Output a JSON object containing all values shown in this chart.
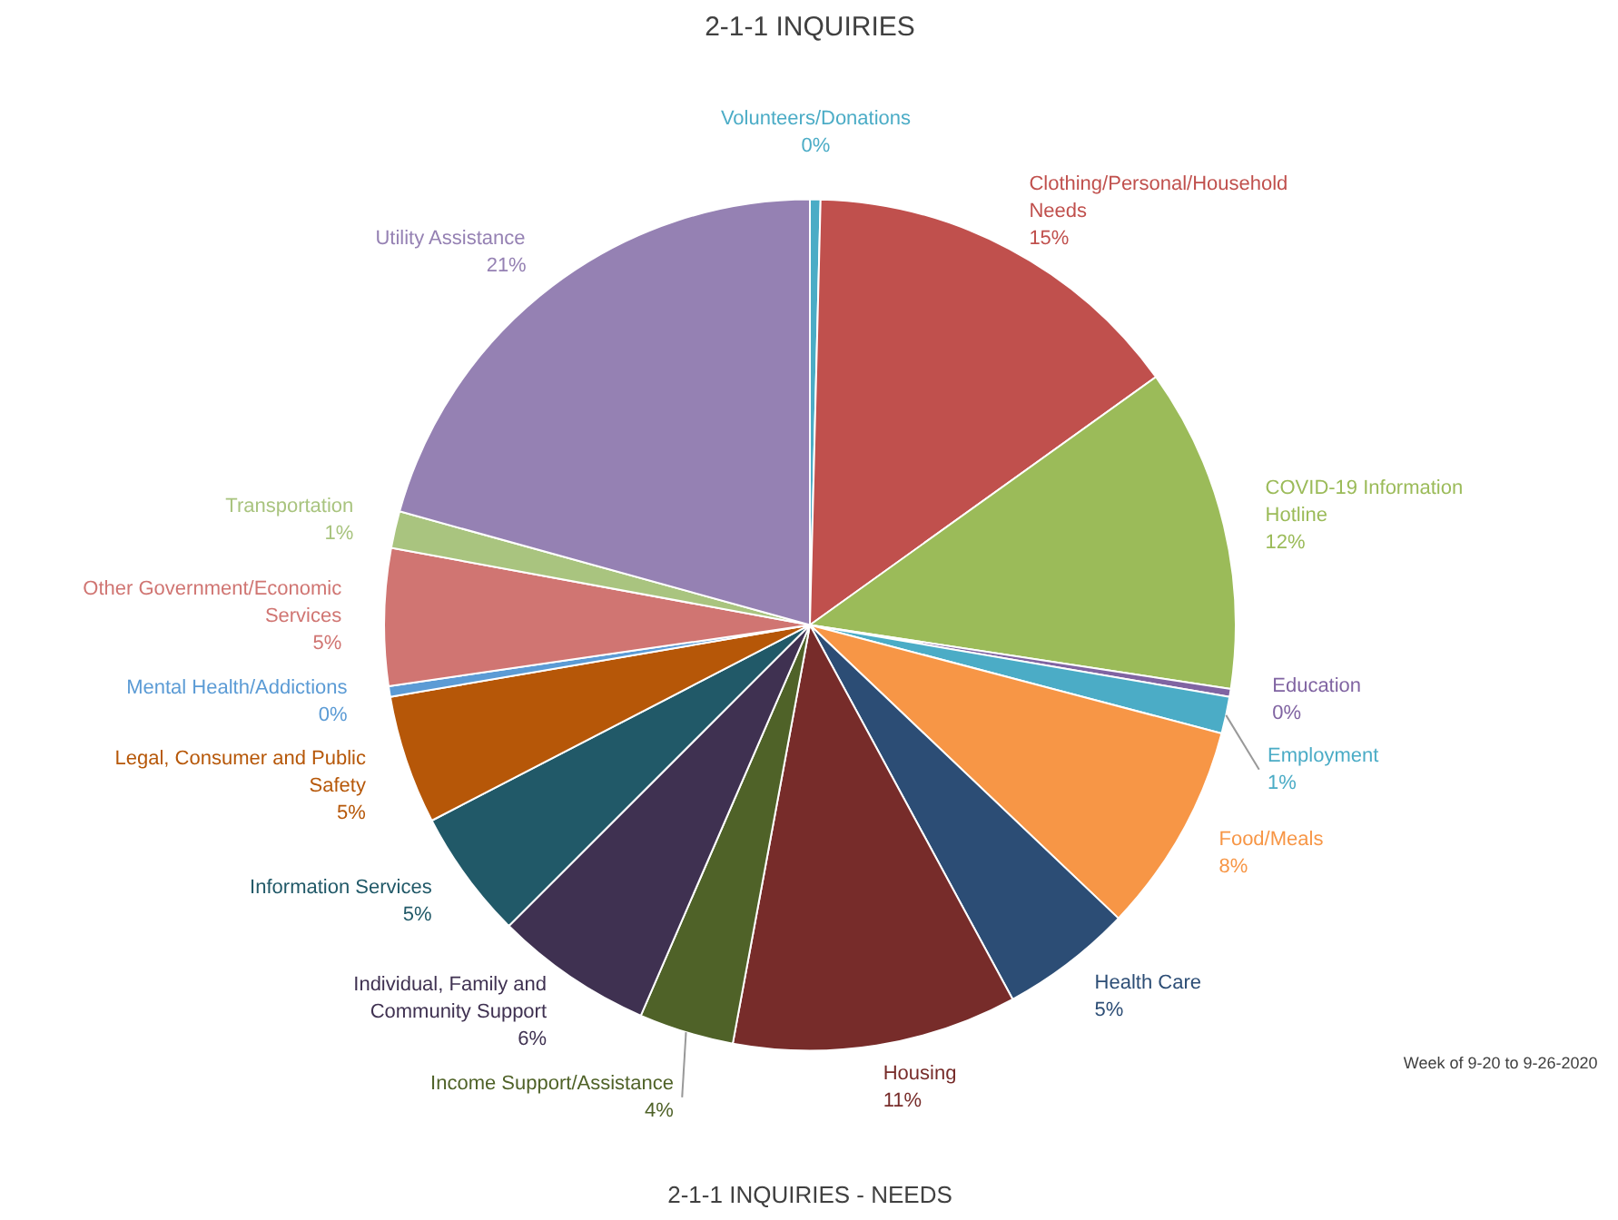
{
  "chart_data": {
    "type": "pie",
    "title": "2-1-1 INQUIRIES",
    "categories": [
      "Volunteers/Donations",
      "Clothing/Personal/Household Needs",
      "COVID-19 Information Hotline",
      "Education",
      "Employment",
      "Food/Meals",
      "Health Care",
      "Housing",
      "Income Support/Assistance",
      "Individual, Family and Community Support",
      "Information Services",
      "Legal, Consumer and Public Safety",
      "Mental Health/Addictions",
      "Other Government/Economic Services",
      "Transportation",
      "Utility Assistance"
    ],
    "values": [
      0.4,
      14.7,
      12.3,
      0.3,
      1.4,
      8.0,
      5.0,
      10.8,
      3.6,
      6.0,
      4.9,
      4.9,
      0.4,
      5.2,
      1.4,
      20.7
    ],
    "value_labels": [
      "0%",
      "15%",
      "12%",
      "0%",
      "1%",
      "8%",
      "5%",
      "11%",
      "4%",
      "6%",
      "5%",
      "5%",
      "0%",
      "5%",
      "1%",
      "21%"
    ],
    "colors": [
      "#4bacc6",
      "#c0504d",
      "#9bbb59",
      "#8064a2",
      "#4bacc6",
      "#f79646",
      "#2c4d75",
      "#772c2a",
      "#4f6228",
      "#3f3151",
      "#215968",
      "#b65708",
      "#5b9bd5",
      "#d07572",
      "#a9c47f",
      "#9581b3"
    ],
    "annotations": [
      "2-1-1 INQUIRIES - NEEDS",
      "Week of 9-20 to 9-26-2020"
    ]
  }
}
